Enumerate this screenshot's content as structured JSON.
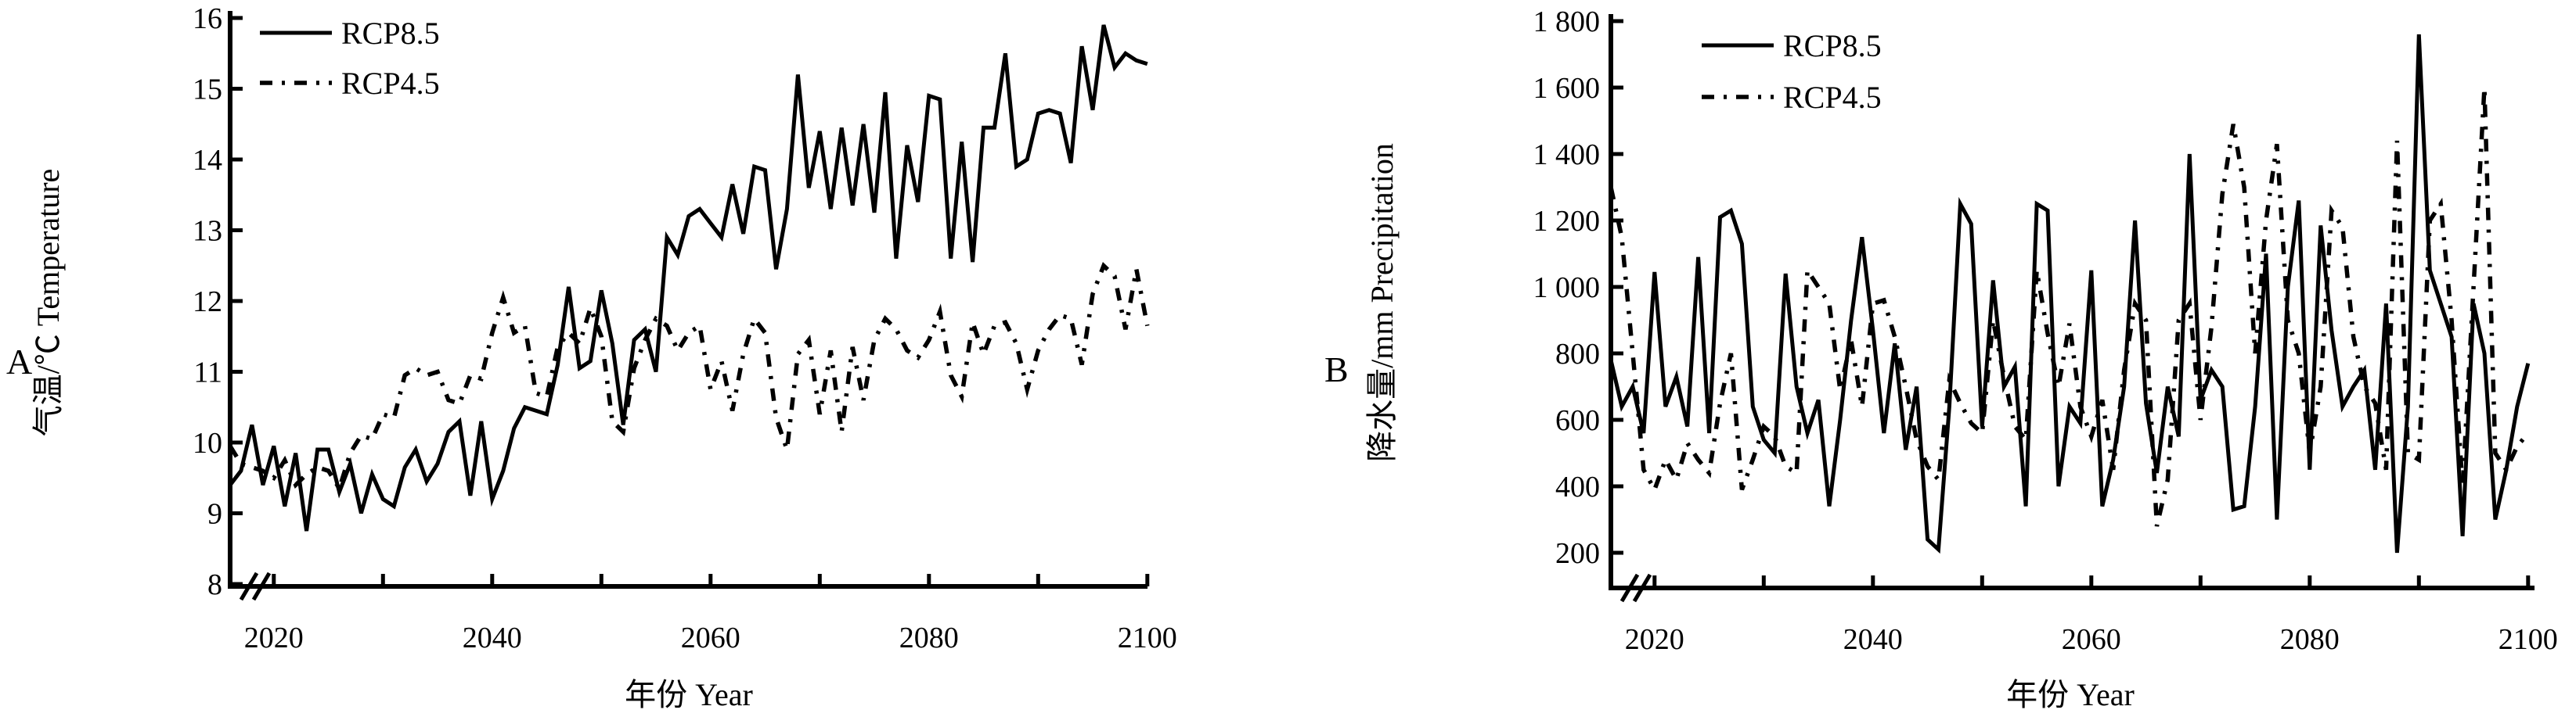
{
  "figure": {
    "background": "#ffffff",
    "line_color": "#000000",
    "panel_labels": [
      "A",
      "B"
    ]
  },
  "chart_data": [
    {
      "panel_label": "A",
      "type": "line",
      "title": "",
      "xlabel": "年份 Year",
      "ylabel": "气温/℃ Temperature",
      "x_start": 2016,
      "x_end": 2100,
      "x_step": 1,
      "xlim": [
        2016,
        2100
      ],
      "ylim": [
        8,
        16
      ],
      "x_major_ticks": [
        2020,
        2040,
        2060,
        2080,
        2100
      ],
      "x_minor_ticks": [
        2030,
        2050,
        2070,
        2090
      ],
      "x_tick_labels": [
        "2020",
        "2040",
        "2060",
        "2080",
        "2100"
      ],
      "y_ticks": [
        8,
        9,
        10,
        11,
        12,
        13,
        14,
        15,
        16
      ],
      "y_tick_labels": [
        "8",
        "9",
        "10",
        "11",
        "12",
        "13",
        "14",
        "15",
        "16"
      ],
      "axis_break_on_x": true,
      "grid": false,
      "legend_position": "top-left",
      "series": [
        {
          "name": "RCP8.5",
          "style": "solid",
          "color": "#000000",
          "values": [
            9.4,
            9.6,
            10.25,
            9.4,
            9.95,
            9.1,
            9.85,
            8.75,
            9.9,
            9.9,
            9.3,
            9.7,
            9.0,
            9.55,
            9.2,
            9.1,
            9.65,
            9.9,
            9.45,
            9.7,
            10.15,
            10.3,
            9.25,
            10.3,
            9.2,
            9.6,
            10.2,
            10.5,
            10.45,
            10.4,
            11.1,
            12.2,
            11.05,
            11.15,
            12.15,
            11.4,
            10.25,
            11.45,
            11.6,
            11.0,
            12.9,
            12.65,
            13.2,
            13.3,
            13.1,
            12.9,
            13.65,
            12.95,
            13.9,
            13.85,
            12.45,
            13.3,
            15.2,
            13.6,
            14.4,
            13.3,
            14.45,
            13.35,
            14.5,
            13.25,
            14.95,
            12.6,
            14.2,
            13.4,
            14.9,
            14.85,
            12.6,
            14.25,
            12.55,
            14.45,
            14.45,
            15.5,
            13.9,
            14.0,
            14.65,
            14.7,
            14.65,
            13.95,
            15.6,
            14.7,
            15.9,
            15.3,
            15.5,
            15.4,
            15.35
          ]
        },
        {
          "name": "RCP4.5",
          "style": "dash-dot",
          "color": "#000000",
          "values": [
            9.95,
            9.7,
            9.65,
            9.6,
            9.5,
            9.75,
            9.4,
            9.55,
            9.65,
            9.6,
            9.35,
            9.85,
            10.1,
            10.05,
            10.4,
            10.35,
            10.95,
            11.05,
            10.95,
            11.0,
            10.6,
            10.55,
            10.95,
            10.9,
            11.55,
            12.05,
            11.55,
            11.65,
            10.7,
            10.65,
            11.35,
            11.55,
            11.4,
            11.9,
            11.5,
            10.3,
            10.15,
            11.05,
            11.45,
            11.75,
            11.65,
            11.3,
            11.55,
            11.65,
            10.75,
            11.15,
            10.45,
            11.25,
            11.75,
            11.55,
            10.35,
            9.9,
            11.25,
            11.45,
            10.4,
            11.3,
            10.15,
            11.35,
            10.6,
            11.45,
            11.75,
            11.6,
            11.3,
            11.2,
            11.45,
            11.85,
            10.95,
            10.65,
            11.7,
            11.25,
            11.65,
            11.7,
            11.4,
            10.75,
            11.3,
            11.6,
            11.8,
            11.75,
            11.1,
            12.1,
            12.5,
            12.35,
            11.6,
            12.45,
            11.65
          ]
        }
      ]
    },
    {
      "panel_label": "B",
      "type": "line",
      "title": "",
      "xlabel": "年份 Year",
      "ylabel": "降水量/mm Precipitation",
      "x_start": 2016,
      "x_end": 2100,
      "x_step": 1,
      "xlim": [
        2016,
        2100
      ],
      "ylim": [
        200,
        1800
      ],
      "x_major_ticks": [
        2020,
        2040,
        2060,
        2080,
        2100
      ],
      "x_minor_ticks": [
        2030,
        2050,
        2070,
        2090
      ],
      "x_tick_labels": [
        "2020",
        "2040",
        "2060",
        "2080",
        "2100"
      ],
      "y_ticks": [
        200,
        400,
        600,
        800,
        1000,
        1200,
        1400,
        1600,
        1800
      ],
      "y_tick_labels": [
        "200",
        "400",
        "600",
        "800",
        "1 000",
        "1 200",
        "1 400",
        "1 600",
        "1 800"
      ],
      "axis_break_on_x": true,
      "grid": false,
      "legend_position": "top-left",
      "series": [
        {
          "name": "RCP8.5",
          "style": "solid",
          "color": "#000000",
          "values": [
            780,
            640,
            700,
            560,
            1045,
            640,
            730,
            580,
            1090,
            560,
            1210,
            1230,
            1130,
            640,
            540,
            500,
            1040,
            700,
            560,
            660,
            340,
            600,
            900,
            1150,
            870,
            560,
            830,
            510,
            700,
            240,
            210,
            640,
            1250,
            1190,
            580,
            1020,
            700,
            760,
            340,
            1250,
            1230,
            400,
            640,
            590,
            1050,
            340,
            480,
            700,
            1200,
            650,
            440,
            700,
            550,
            1400,
            660,
            750,
            700,
            330,
            340,
            640,
            1100,
            300,
            1000,
            1260,
            450,
            1185,
            870,
            640,
            700,
            750,
            450,
            950,
            200,
            640,
            1760,
            1050,
            950,
            850,
            250,
            950,
            800,
            300,
            450,
            640,
            770
          ]
        },
        {
          "name": "RCP4.5",
          "style": "dash-dot",
          "color": "#000000",
          "values": [
            1300,
            1150,
            800,
            450,
            390,
            480,
            420,
            530,
            480,
            440,
            650,
            800,
            390,
            480,
            580,
            550,
            460,
            440,
            1050,
            1000,
            950,
            690,
            840,
            640,
            950,
            960,
            850,
            700,
            540,
            460,
            420,
            720,
            650,
            590,
            560,
            900,
            730,
            580,
            540,
            1050,
            860,
            700,
            890,
            640,
            550,
            660,
            450,
            750,
            950,
            900,
            280,
            420,
            900,
            950,
            600,
            880,
            1280,
            1490,
            1300,
            800,
            1200,
            1430,
            900,
            800,
            500,
            700,
            1230,
            1180,
            850,
            700,
            650,
            450,
            1440,
            500,
            480,
            1200,
            1250,
            900,
            400,
            1000,
            1600,
            500,
            450,
            520,
            560
          ]
        }
      ]
    }
  ]
}
